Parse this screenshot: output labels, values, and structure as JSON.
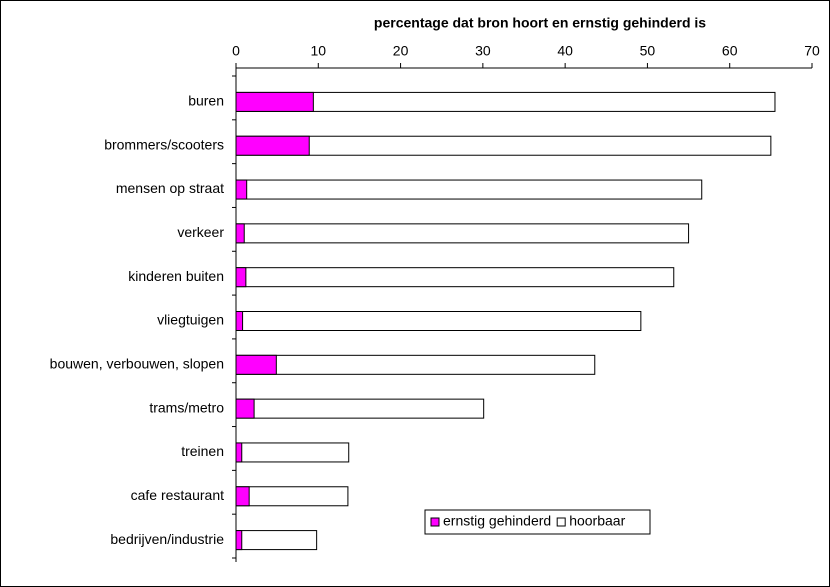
{
  "chart_data": {
    "type": "bar",
    "orientation": "horizontal",
    "overlap": true,
    "x_label": "percentage dat bron hoort en ernstig gehinderd is",
    "categories": [
      "buren",
      "brommers/scooters",
      "mensen op straat",
      "verkeer",
      "kinderen buiten",
      "vliegtuigen",
      "bouwen, verbouwen, slopen",
      "trams/metro",
      "treinen",
      "cafe restaurant",
      "bedrijven/industrie"
    ],
    "series": [
      {
        "name": "ernstig gehinderd",
        "color": "#ff00ff",
        "values": [
          9.4,
          8.9,
          1.3,
          1.0,
          1.2,
          0.8,
          4.9,
          2.2,
          0.7,
          1.6,
          0.7
        ]
      },
      {
        "name": "hoorbaar",
        "color": "#ffffff",
        "values": [
          65.5,
          65.0,
          56.6,
          55.0,
          53.2,
          49.2,
          43.6,
          30.1,
          13.7,
          13.6,
          9.8
        ]
      }
    ],
    "xlim": [
      0,
      70
    ],
    "xticks": [
      0,
      10,
      20,
      30,
      40,
      50,
      60,
      70
    ],
    "x_axis_position": "top",
    "legend": "lower right",
    "grid": false
  }
}
